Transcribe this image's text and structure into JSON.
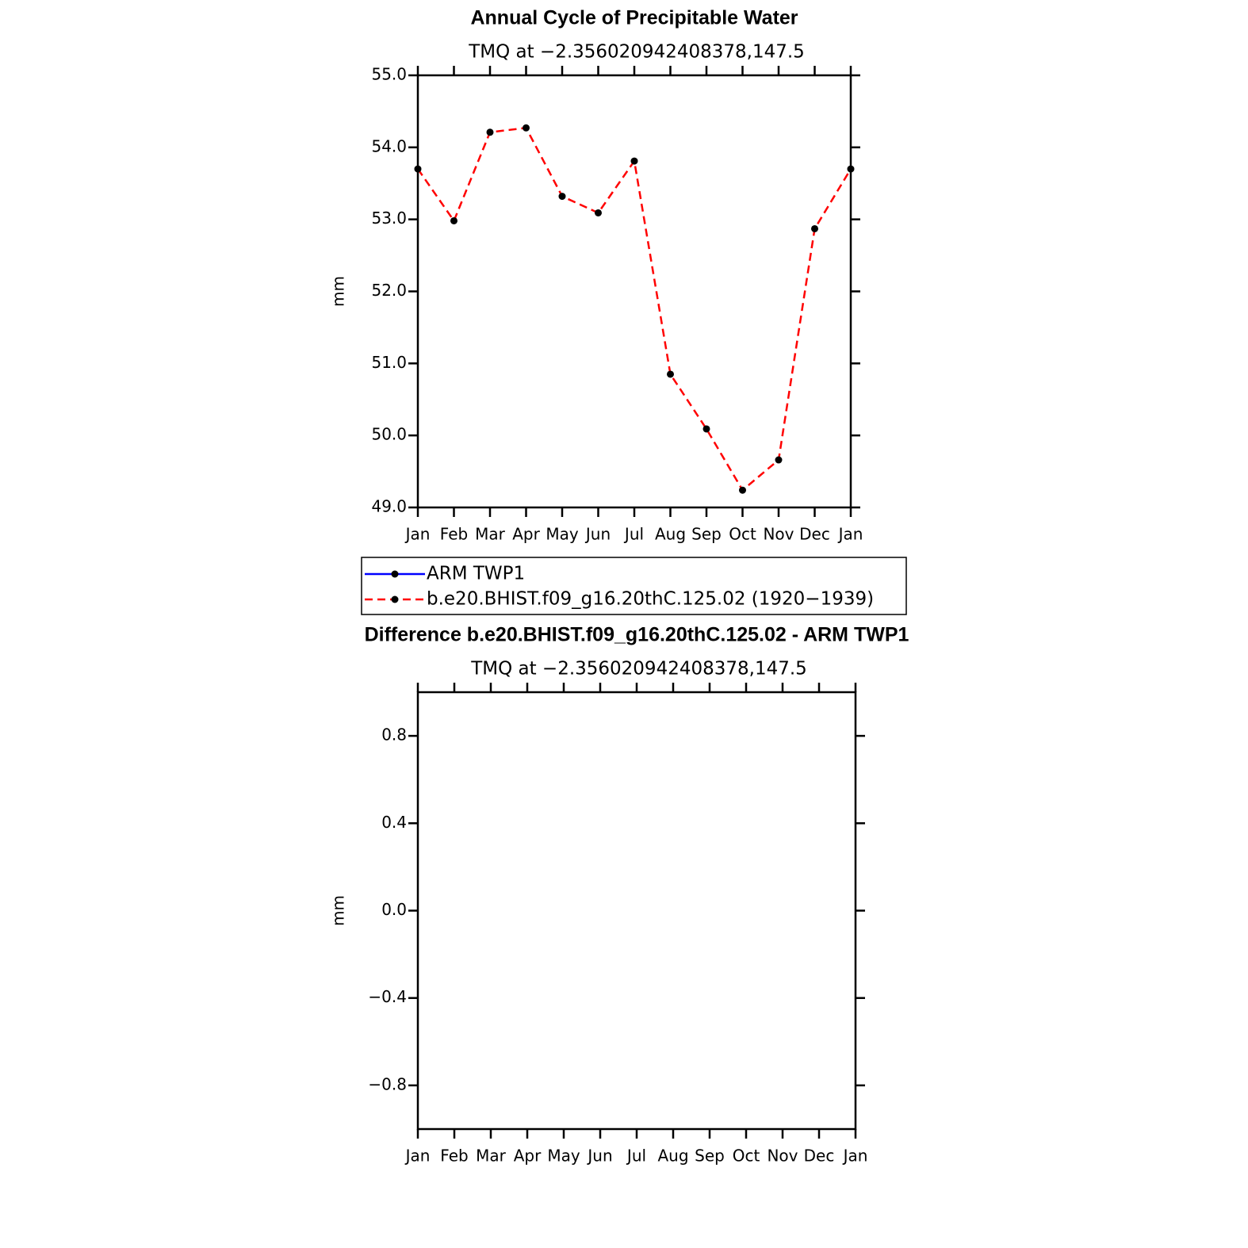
{
  "chart_data": [
    {
      "type": "line",
      "title": "Annual Cycle of Precipitable Water",
      "subtitle": "TMQ at −2.356020942408378,147.5",
      "ylabel": "mm",
      "categories": [
        "Jan",
        "Feb",
        "Mar",
        "Apr",
        "May",
        "Jun",
        "Jul",
        "Aug",
        "Sep",
        "Oct",
        "Nov",
        "Dec",
        "Jan"
      ],
      "series": [
        {
          "name": "ARM TWP1",
          "color": "#0000ff",
          "linestyle": "solid",
          "marker": "circle",
          "values": [
            null,
            null,
            null,
            null,
            null,
            null,
            null,
            null,
            null,
            null,
            null,
            null,
            null
          ]
        },
        {
          "name": "b.e20.BHIST.f09_g16.20thC.125.02 (1920−1939)",
          "color": "#ff0000",
          "linestyle": "dashed",
          "marker": "circle",
          "values": [
            53.7,
            52.98,
            54.21,
            54.27,
            53.32,
            53.09,
            53.81,
            50.85,
            50.09,
            49.24,
            49.66,
            52.87,
            53.7
          ]
        }
      ],
      "ylim": [
        49,
        55
      ],
      "yticks": [
        {
          "value": 49,
          "label": "49.0"
        },
        {
          "value": 50,
          "label": "50.0"
        },
        {
          "value": 51,
          "label": "51.0"
        },
        {
          "value": 52,
          "label": "52.0"
        },
        {
          "value": 53,
          "label": "53.0"
        },
        {
          "value": 54,
          "label": "54.0"
        },
        {
          "value": 55,
          "label": "55.0"
        }
      ],
      "legend": "below"
    },
    {
      "type": "line",
      "title": "Difference b.e20.BHIST.f09_g16.20thC.125.02 - ARM TWP1",
      "subtitle": "TMQ at −2.356020942408378,147.5",
      "ylabel": "mm",
      "categories": [
        "Jan",
        "Feb",
        "Mar",
        "Apr",
        "May",
        "Jun",
        "Jul",
        "Aug",
        "Sep",
        "Oct",
        "Nov",
        "Dec",
        "Jan"
      ],
      "ylim": [
        -1,
        1
      ],
      "yticks": [
        {
          "value": -0.8,
          "label": "−0.8"
        },
        {
          "value": -0.4,
          "label": "−0.4"
        },
        {
          "value": 0,
          "label": "0.0"
        },
        0.4,
        0.8
      ]
    }
  ]
}
